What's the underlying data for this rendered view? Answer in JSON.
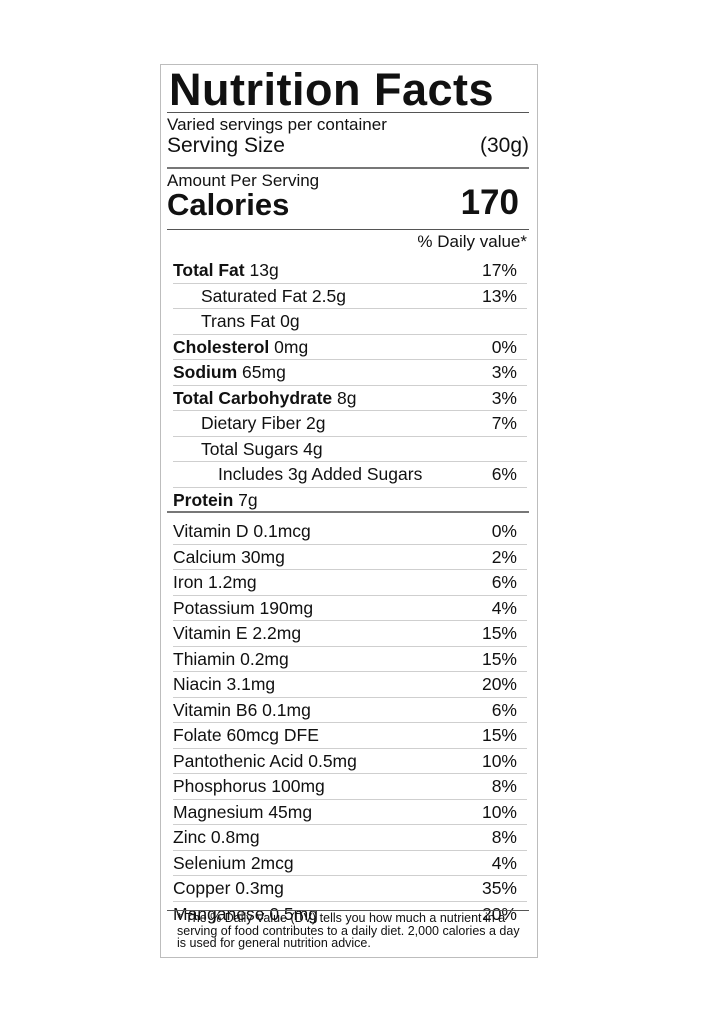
{
  "label": {
    "title": "Nutrition Facts",
    "servings_per_container": "Varied servings per container",
    "serving_size_label": "Serving Size",
    "serving_size_value": "(30g)",
    "amount_per_serving": "Amount Per Serving",
    "calories_label": "Calories",
    "calories_value": "170",
    "daily_value_header": "% Daily value*",
    "nutrients": [
      {
        "bold": "Total Fat",
        "amount": " 13g",
        "dv": "17%"
      },
      {
        "bold": "",
        "amount": "Saturated Fat 2.5g",
        "dv": "13%"
      },
      {
        "bold": "",
        "amount": "Trans Fat 0g",
        "dv": ""
      },
      {
        "bold": "Cholesterol",
        "amount": " 0mg",
        "dv": "0%"
      },
      {
        "bold": "Sodium",
        "amount": " 65mg",
        "dv": "3%"
      },
      {
        "bold": "Total Carbohydrate",
        "amount": " 8g",
        "dv": "3%"
      },
      {
        "bold": "",
        "amount": "Dietary Fiber 2g",
        "dv": "7%"
      },
      {
        "bold": "",
        "amount": "Total Sugars 4g",
        "dv": ""
      },
      {
        "bold": "",
        "amount": "Includes 3g Added Sugars",
        "dv": "6%"
      },
      {
        "bold": "Protein",
        "amount": " 7g",
        "dv": ""
      }
    ],
    "vitamins": [
      {
        "name": "Vitamin D 0.1mcg",
        "dv": "0%"
      },
      {
        "name": "Calcium 30mg",
        "dv": "2%"
      },
      {
        "name": "Iron 1.2mg",
        "dv": "6%"
      },
      {
        "name": "Potassium 190mg",
        "dv": "4%"
      },
      {
        "name": "Vitamin E 2.2mg",
        "dv": "15%"
      },
      {
        "name": "Thiamin 0.2mg",
        "dv": "15%"
      },
      {
        "name": "Niacin 3.1mg",
        "dv": "20%"
      },
      {
        "name": "Vitamin B6 0.1mg",
        "dv": "6%"
      },
      {
        "name": "Folate 60mcg DFE",
        "dv": "15%"
      },
      {
        "name": "Pantothenic Acid 0.5mg",
        "dv": "10%"
      },
      {
        "name": "Phosphorus 100mg",
        "dv": "8%"
      },
      {
        "name": "Magnesium 45mg",
        "dv": "10%"
      },
      {
        "name": "Zinc 0.8mg",
        "dv": "8%"
      },
      {
        "name": "Selenium 2mcg",
        "dv": "4%"
      },
      {
        "name": "Copper 0.3mg",
        "dv": "35%"
      },
      {
        "name": "Manganese 0.5mg",
        "dv": "20%"
      }
    ],
    "footnote": "* The % Daily Value (DV) tells you how much a nutrient in a serving of food contributes to a daily diet. 2,000 calories a day is used for general nutrition advice."
  }
}
